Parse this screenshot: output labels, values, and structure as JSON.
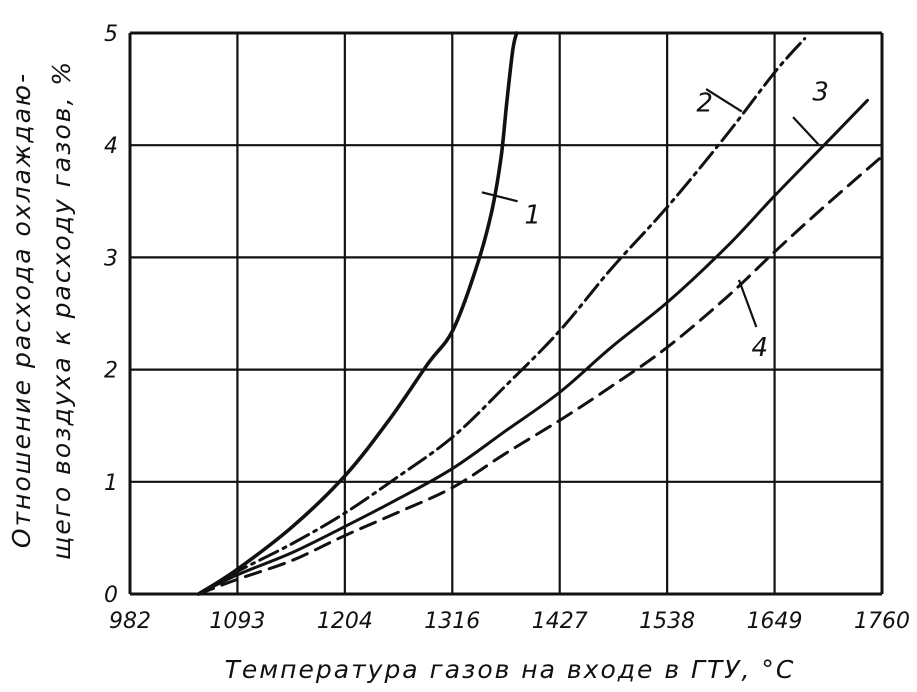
{
  "chart_data": {
    "type": "line",
    "xlabel": "Температура газов на входе в ГТУ, °С",
    "ylabel_line1": "Отношение расхода охлаждаю-",
    "ylabel_line2": "щего воздуха к расходу газов, %",
    "x_ticks": [
      "982",
      "1093",
      "1204",
      "1316",
      "1427",
      "1538",
      "1649",
      "1760"
    ],
    "y_ticks": [
      "0",
      "1",
      "2",
      "3",
      "4",
      "5"
    ],
    "xlim": [
      982,
      1760
    ],
    "ylim": [
      0,
      5
    ],
    "grid": true,
    "series": [
      {
        "name": "1",
        "style": "solid",
        "x": [
          1053,
          1093,
          1150,
          1204,
          1250,
          1290,
          1316,
          1340,
          1356,
          1366,
          1372,
          1378,
          1382
        ],
        "y": [
          0,
          0.22,
          0.6,
          1.05,
          1.55,
          2.05,
          2.35,
          2.9,
          3.4,
          3.9,
          4.4,
          4.85,
          5.0
        ]
      },
      {
        "name": "2",
        "style": "dash-dot",
        "x": [
          1053,
          1093,
          1150,
          1204,
          1260,
          1316,
          1370,
          1427,
          1480,
          1538,
          1600,
          1649,
          1680
        ],
        "y": [
          0,
          0.2,
          0.45,
          0.72,
          1.05,
          1.4,
          1.85,
          2.35,
          2.9,
          3.45,
          4.1,
          4.65,
          4.95
        ]
      },
      {
        "name": "3",
        "style": "solid",
        "x": [
          1053,
          1093,
          1150,
          1204,
          1260,
          1316,
          1370,
          1427,
          1480,
          1538,
          1600,
          1649,
          1700,
          1745
        ],
        "y": [
          0,
          0.17,
          0.37,
          0.6,
          0.85,
          1.12,
          1.45,
          1.8,
          2.2,
          2.6,
          3.1,
          3.55,
          4.0,
          4.4
        ]
      },
      {
        "name": "4",
        "style": "dashed",
        "x": [
          1053,
          1093,
          1150,
          1204,
          1260,
          1316,
          1370,
          1427,
          1480,
          1538,
          1600,
          1649,
          1700,
          1760
        ],
        "y": [
          0,
          0.13,
          0.3,
          0.52,
          0.73,
          0.95,
          1.25,
          1.55,
          1.85,
          2.2,
          2.65,
          3.05,
          3.45,
          3.9
        ]
      }
    ]
  }
}
